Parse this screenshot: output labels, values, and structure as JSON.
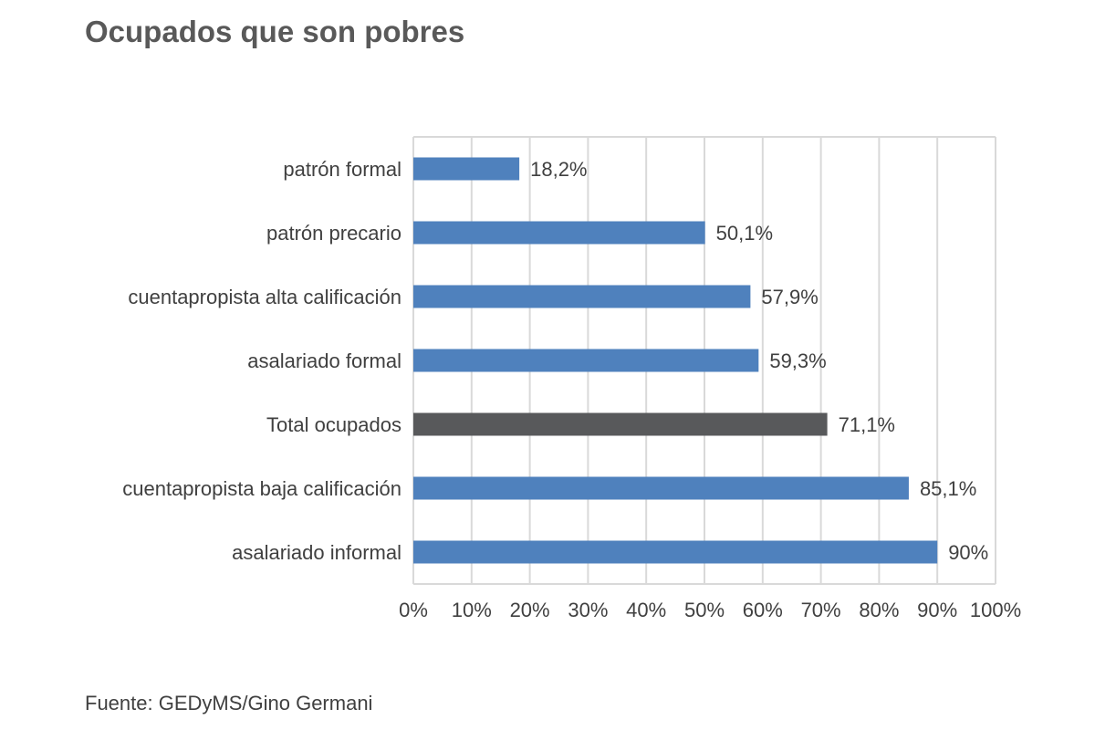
{
  "chart_data": {
    "type": "bar",
    "orientation": "horizontal",
    "title": "Ocupados que son pobres",
    "source": "Fuente: GEDyMS/Gino Germani",
    "xlabel": "",
    "ylabel": "",
    "xlim": [
      0,
      100
    ],
    "x_ticks": [
      "0%",
      "10%",
      "20%",
      "30%",
      "40%",
      "50%",
      "60%",
      "70%",
      "80%",
      "90%",
      "100%"
    ],
    "grid": true,
    "legend": "none",
    "colors": {
      "default": "#4F81BD",
      "highlight": "#58595B",
      "grid": "#D9D9D9"
    },
    "categories": [
      "patrón formal",
      "patrón precario",
      "cuentapropista alta calificación",
      "asalariado formal",
      "Total ocupados",
      "cuentapropista baja calificación",
      "asalariado informal"
    ],
    "values": [
      18.2,
      50.1,
      57.9,
      59.3,
      71.1,
      85.1,
      90
    ],
    "value_labels": [
      "18,2%",
      "50,1%",
      "57,9%",
      "59,3%",
      "71,1%",
      "85,1%",
      "90%"
    ],
    "highlight_category": "Total ocupados"
  }
}
